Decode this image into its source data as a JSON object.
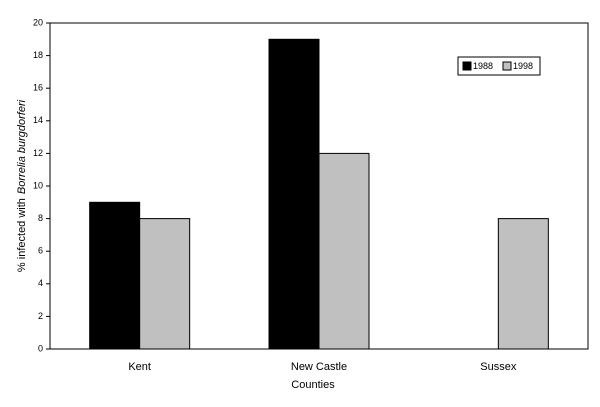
{
  "chart_data": {
    "type": "bar",
    "y_label": [
      "% infected with",
      "Borrelia burgdorferi"
    ],
    "x_label": "Counties",
    "categories": [
      "Kent",
      "New Castle",
      "Sussex"
    ],
    "series": [
      {
        "name": "1988",
        "color": "#000000",
        "values": [
          9,
          19,
          null
        ]
      },
      {
        "name": "1998",
        "color": "#c0c0c0",
        "values": [
          8,
          12,
          8
        ]
      }
    ],
    "ylim": [
      0,
      20
    ],
    "yticks": [
      0,
      2,
      4,
      6,
      8,
      10,
      12,
      14,
      16,
      18,
      20
    ],
    "grid": false,
    "legend": "upper right"
  }
}
